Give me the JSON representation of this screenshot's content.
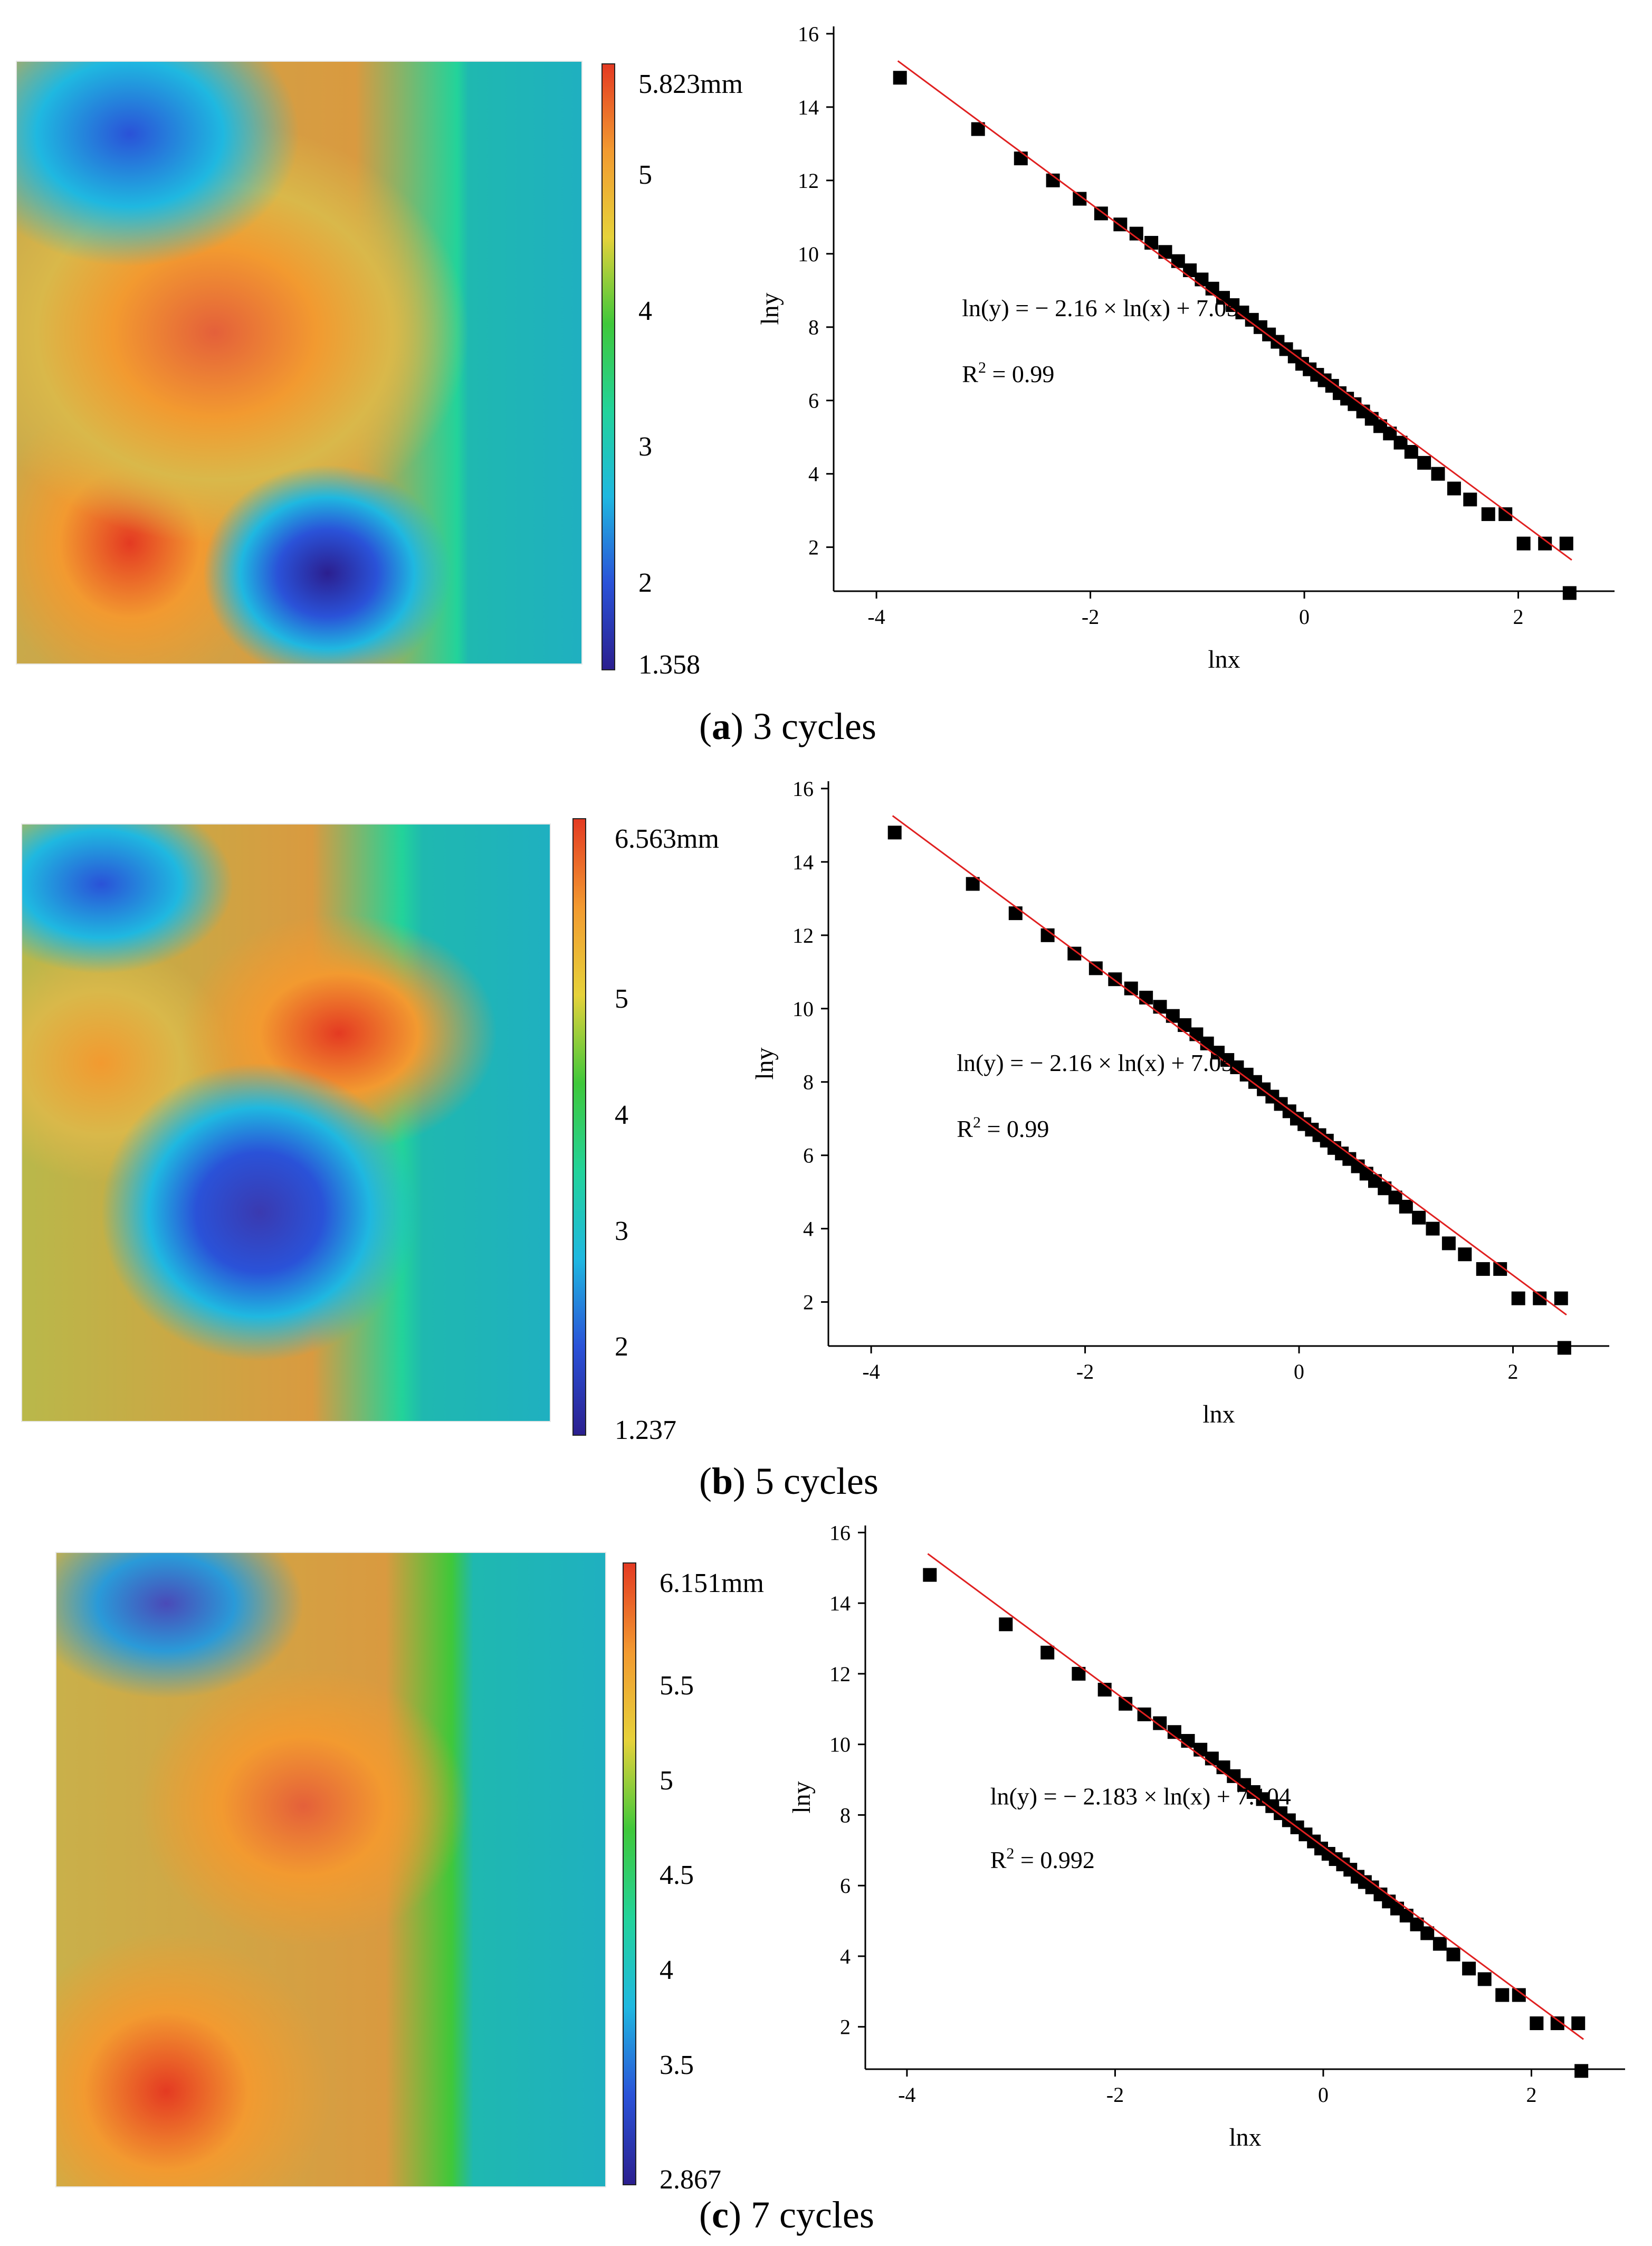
{
  "panels": [
    {
      "id": "a",
      "caption": {
        "open": "(",
        "letter": "a",
        "close": ")",
        "text": " 3 cycles"
      },
      "colorbar": {
        "unit": "mm",
        "max_label": "5.823mm",
        "min_label": "1.358",
        "min": 1.358,
        "max": 5.823,
        "ticks": [
          "5",
          "4",
          "3",
          "2"
        ],
        "tick_values": [
          5,
          4,
          3,
          2
        ]
      },
      "chart_data": {
        "type": "scatter",
        "xlabel": "lnx",
        "ylabel": "lny",
        "xlim": [
          -4.4,
          2.9
        ],
        "ylim": [
          0.8,
          16.2
        ],
        "xticks": [
          -4,
          -2,
          0,
          2
        ],
        "yticks": [
          2,
          4,
          6,
          8,
          10,
          12,
          14,
          16
        ],
        "equation": "ln(y) = − 2.16 × ln(x) + 7.05",
        "r2_prefix": "R",
        "r2_sup": "2",
        "r2_value": " = 0.99",
        "fit": {
          "slope": -2.16,
          "intercept": 7.05,
          "x_range": [
            -3.8,
            2.5
          ],
          "color": "#e02020"
        },
        "points": {
          "x": [
            -3.78,
            -3.05,
            -2.65,
            -2.35,
            -2.1,
            -1.9,
            -1.72,
            -1.57,
            -1.43,
            -1.3,
            -1.18,
            -1.07,
            -0.96,
            -0.86,
            -0.76,
            -0.67,
            -0.58,
            -0.49,
            -0.41,
            -0.33,
            -0.25,
            -0.17,
            -0.09,
            -0.02,
            0.05,
            0.12,
            0.19,
            0.26,
            0.33,
            0.4,
            0.47,
            0.55,
            0.63,
            0.71,
            0.8,
            0.9,
            1.0,
            1.12,
            1.25,
            1.4,
            1.55,
            1.72,
            1.88,
            2.05,
            2.25,
            2.45,
            2.48
          ],
          "y": [
            14.8,
            13.4,
            12.6,
            12.0,
            11.5,
            11.1,
            10.8,
            10.55,
            10.3,
            10.05,
            9.8,
            9.55,
            9.3,
            9.05,
            8.8,
            8.6,
            8.4,
            8.2,
            8.0,
            7.8,
            7.6,
            7.4,
            7.2,
            7.0,
            6.85,
            6.7,
            6.55,
            6.4,
            6.2,
            6.05,
            5.9,
            5.7,
            5.5,
            5.3,
            5.1,
            4.85,
            4.6,
            4.3,
            4.0,
            3.6,
            3.3,
            2.9,
            2.9,
            2.1,
            2.1,
            2.1,
            0.75
          ]
        }
      }
    },
    {
      "id": "b",
      "caption": {
        "open": "(",
        "letter": "b",
        "close": ")",
        "text": " 5 cycles"
      },
      "colorbar": {
        "unit": "mm",
        "max_label": "6.563mm",
        "min_label": "1.237",
        "min": 1.237,
        "max": 6.563,
        "ticks": [
          "5",
          "4",
          "3",
          "2"
        ],
        "tick_values": [
          5,
          4,
          3,
          2
        ]
      },
      "chart_data": {
        "type": "scatter",
        "xlabel": "lnx",
        "ylabel": "lny",
        "xlim": [
          -4.4,
          2.9
        ],
        "ylim": [
          0.8,
          16.2
        ],
        "xticks": [
          -4,
          -2,
          0,
          2
        ],
        "yticks": [
          2,
          4,
          6,
          8,
          10,
          12,
          14,
          16
        ],
        "equation": "ln(y) = − 2.16 × ln(x) + 7.05",
        "r2_prefix": "R",
        "r2_sup": "2",
        "r2_value": " = 0.99",
        "fit": {
          "slope": -2.16,
          "intercept": 7.05,
          "x_range": [
            -3.8,
            2.5
          ],
          "color": "#e02020"
        },
        "points": {
          "x": [
            -3.78,
            -3.05,
            -2.65,
            -2.35,
            -2.1,
            -1.9,
            -1.72,
            -1.57,
            -1.43,
            -1.3,
            -1.18,
            -1.07,
            -0.96,
            -0.86,
            -0.76,
            -0.67,
            -0.58,
            -0.49,
            -0.41,
            -0.33,
            -0.25,
            -0.17,
            -0.09,
            -0.02,
            0.05,
            0.12,
            0.19,
            0.26,
            0.33,
            0.4,
            0.47,
            0.55,
            0.63,
            0.71,
            0.8,
            0.9,
            1.0,
            1.12,
            1.25,
            1.4,
            1.55,
            1.72,
            1.88,
            2.05,
            2.25,
            2.45,
            2.48
          ],
          "y": [
            14.8,
            13.4,
            12.6,
            12.0,
            11.5,
            11.1,
            10.8,
            10.55,
            10.3,
            10.05,
            9.8,
            9.55,
            9.3,
            9.05,
            8.8,
            8.6,
            8.4,
            8.2,
            8.0,
            7.8,
            7.6,
            7.4,
            7.2,
            7.0,
            6.85,
            6.7,
            6.55,
            6.4,
            6.2,
            6.05,
            5.9,
            5.7,
            5.5,
            5.3,
            5.1,
            4.85,
            4.6,
            4.3,
            4.0,
            3.6,
            3.3,
            2.9,
            2.9,
            2.1,
            2.1,
            2.1,
            0.75
          ]
        }
      }
    },
    {
      "id": "c",
      "caption": {
        "open": "(",
        "letter": "c",
        "close": ")",
        "text": " 7 cycles"
      },
      "colorbar": {
        "unit": "mm",
        "max_label": "6.151mm",
        "min_label": "2.867",
        "min": 2.867,
        "max": 6.151,
        "ticks": [
          "5.5",
          "5",
          "4.5",
          "4",
          "3.5"
        ],
        "tick_values": [
          5.5,
          5,
          4.5,
          4,
          3.5
        ]
      },
      "chart_data": {
        "type": "scatter",
        "xlabel": "lnx",
        "ylabel": "lny",
        "xlim": [
          -4.4,
          2.9
        ],
        "ylim": [
          0.8,
          16.2
        ],
        "xticks": [
          -4,
          -2,
          0,
          2
        ],
        "yticks": [
          2,
          4,
          6,
          8,
          10,
          12,
          14,
          16
        ],
        "equation": "ln(y) = − 2.183 × ln(x) + 7.104",
        "r2_prefix": "R",
        "r2_sup": "2",
        "r2_value": " = 0.992",
        "fit": {
          "slope": -2.183,
          "intercept": 7.104,
          "x_range": [
            -3.8,
            2.5
          ],
          "color": "#e02020"
        },
        "points": {
          "x": [
            -3.78,
            -3.05,
            -2.65,
            -2.35,
            -2.1,
            -1.9,
            -1.72,
            -1.57,
            -1.43,
            -1.3,
            -1.18,
            -1.07,
            -0.96,
            -0.86,
            -0.76,
            -0.67,
            -0.58,
            -0.49,
            -0.41,
            -0.33,
            -0.25,
            -0.17,
            -0.09,
            -0.02,
            0.05,
            0.12,
            0.19,
            0.26,
            0.33,
            0.4,
            0.47,
            0.55,
            0.63,
            0.71,
            0.8,
            0.9,
            1.0,
            1.12,
            1.25,
            1.4,
            1.55,
            1.72,
            1.88,
            2.05,
            2.25,
            2.45,
            2.48
          ],
          "y": [
            14.8,
            13.4,
            12.6,
            12.0,
            11.55,
            11.15,
            10.85,
            10.6,
            10.35,
            10.1,
            9.85,
            9.6,
            9.35,
            9.1,
            8.85,
            8.65,
            8.45,
            8.25,
            8.05,
            7.85,
            7.65,
            7.45,
            7.25,
            7.05,
            6.9,
            6.75,
            6.6,
            6.45,
            6.25,
            6.1,
            5.95,
            5.75,
            5.55,
            5.35,
            5.15,
            4.9,
            4.65,
            4.35,
            4.05,
            3.65,
            3.35,
            2.9,
            2.9,
            2.1,
            2.1,
            2.1,
            0.75
          ]
        }
      }
    }
  ],
  "colors": {
    "fit_line": "#e02020",
    "marker": "#000000",
    "colormap": [
      "#2b1f8f",
      "#2a52d8",
      "#1fb8e0",
      "#22d39a",
      "#3fc83a",
      "#e6d23a",
      "#f29a30",
      "#e43a22"
    ]
  }
}
